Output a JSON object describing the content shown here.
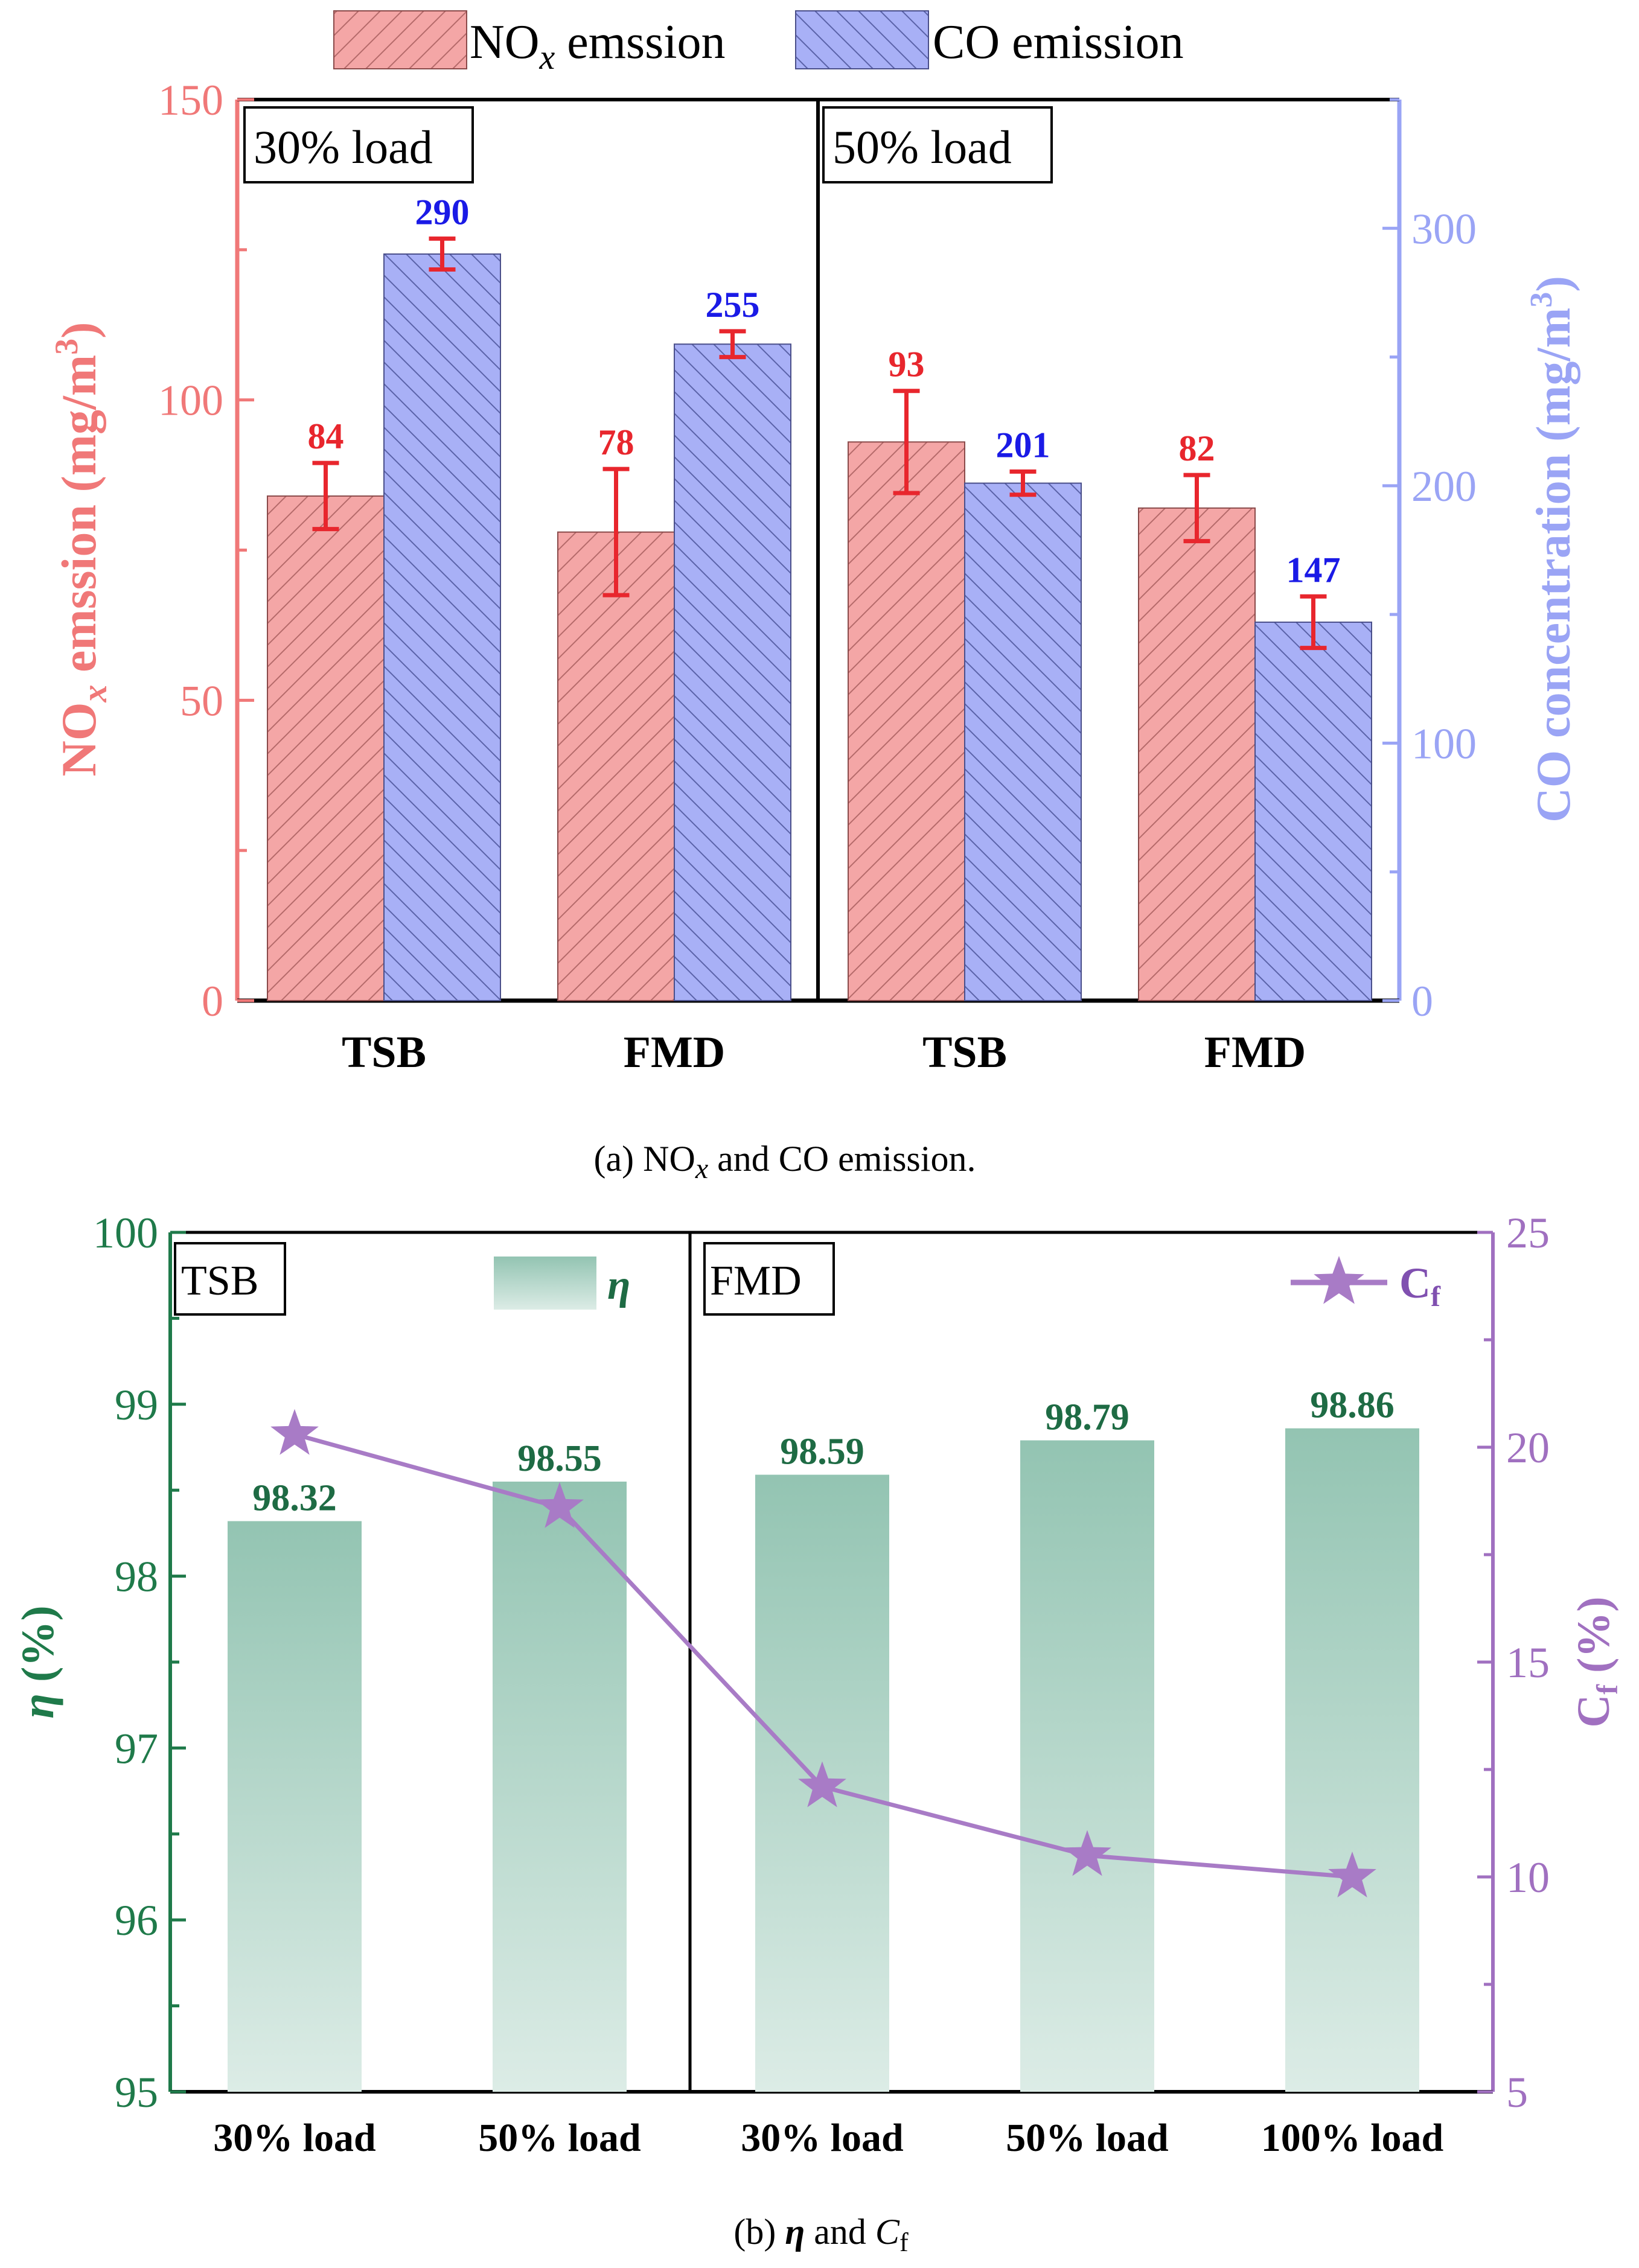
{
  "chart_data": [
    {
      "type": "bar",
      "title": "",
      "caption": {
        "prefix": "(a) NO",
        "sub": "x",
        "suffix": " and CO emission."
      },
      "categories": [
        "TSB",
        "FMD",
        "TSB",
        "FMD"
      ],
      "panels": [
        "30% load",
        "50% load"
      ],
      "series": [
        {
          "name": "NOx emssion",
          "legend": {
            "base": "NO",
            "sub": "x",
            "rest": " emssion"
          },
          "axis": "left",
          "color": "#f4a6a6",
          "values": [
            84,
            78,
            93,
            82
          ],
          "labels": [
            "84",
            "78",
            "93",
            "82"
          ],
          "errors": [
            5.5,
            10.5,
            8.5,
            5.5
          ]
        },
        {
          "name": "CO emission",
          "legend": {
            "base": "CO emission"
          },
          "axis": "right",
          "color": "#a8b0f6",
          "values": [
            290,
            255,
            201,
            147
          ],
          "labels": [
            "290",
            "255",
            "201",
            "147"
          ],
          "errors": [
            6,
            5,
            4.5,
            10
          ]
        }
      ],
      "ylabel_left": {
        "base": "NO",
        "sub": "x",
        "rest": " emssion (mg/m",
        "sup": "3",
        "close": ")"
      },
      "ylabel_right": {
        "base": "CO concentration (mg/m",
        "sup": "3",
        "close": ")"
      },
      "ylim_left": [
        0,
        150
      ],
      "ylim_right": [
        0,
        350
      ],
      "yticks_left": [
        "0",
        "50",
        "100",
        "150"
      ],
      "yticks_right": [
        "0",
        "100",
        "200",
        "300"
      ]
    },
    {
      "type": "bar+line",
      "caption": {
        "prefix": "(b) ",
        "eta": "η",
        "mid": " and ",
        "c": "C",
        "sub": "f"
      },
      "categories": [
        "30% load",
        "50% load",
        "30% load",
        "50% load",
        "100% load"
      ],
      "panels": [
        "TSB",
        "FMD"
      ],
      "bar_series": {
        "name": "η",
        "axis": "left",
        "color": "#8fc2b0",
        "values": [
          98.32,
          98.55,
          98.59,
          98.79,
          98.86
        ],
        "labels": [
          "98.32",
          "98.55",
          "98.59",
          "98.79",
          "98.86"
        ]
      },
      "line_series": {
        "name": "Cf",
        "legend": {
          "base": "C",
          "sub": "f"
        },
        "axis": "right",
        "color": "#a87bc6",
        "values": [
          20.3,
          18.6,
          12.1,
          10.5,
          10.0
        ]
      },
      "ylabel_left": {
        "eta": "η",
        "rest": " (%)"
      },
      "ylabel_right": {
        "base": "C",
        "sub": "f",
        "rest": " (%)"
      },
      "ylim_left": [
        95,
        100
      ],
      "ylim_right": [
        5,
        25
      ],
      "yticks_left": [
        "95",
        "96",
        "97",
        "98",
        "99",
        "100"
      ],
      "yticks_right": [
        "5",
        "10",
        "15",
        "20",
        "25"
      ]
    }
  ]
}
